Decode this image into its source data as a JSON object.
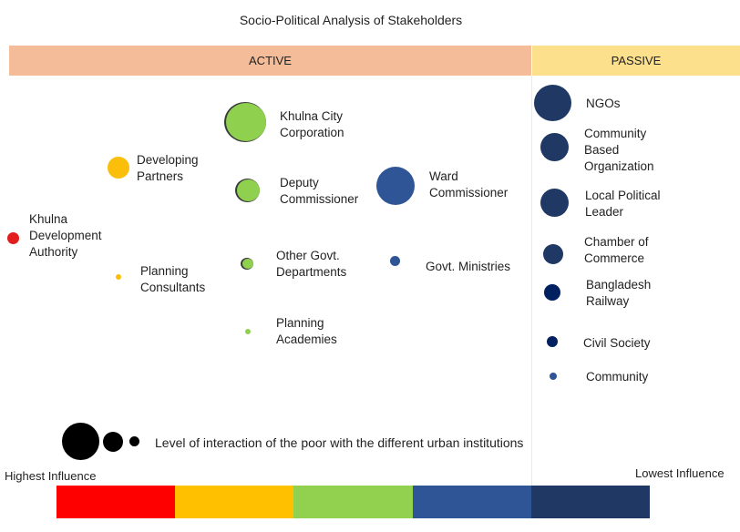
{
  "title": "Socio-Political Analysis of Stakeholders",
  "bands": {
    "active": "ACTIVE",
    "passive": "PASSIVE"
  },
  "stakeholders": {
    "kda": {
      "label": "Khulna\nDevelopment\nAuthority",
      "color": "#e11d1d"
    },
    "partners": {
      "label": "Developing\nPartners",
      "color": "#fbbf0b"
    },
    "consultants": {
      "label": "Planning\nConsultants",
      "color": "#fbbf0b"
    },
    "kcc": {
      "label": "Khulna City\nCorporation",
      "color": "#8fd14f"
    },
    "deputy": {
      "label": "Deputy\nCommissioner",
      "color": "#8fd14f"
    },
    "othergovt": {
      "label": "Other Govt.\nDepartments",
      "color": "#8fd14f"
    },
    "academies": {
      "label": "Planning\nAcademies",
      "color": "#8fd14f"
    },
    "ward": {
      "label": "Ward\nCommissioner",
      "color": "#2f5597"
    },
    "ministries": {
      "label": "Govt. Ministries",
      "color": "#2f5597"
    },
    "ngos": {
      "label": "NGOs",
      "color": "#1f3864"
    },
    "cbo": {
      "label": "Community\nBased\nOrganization",
      "color": "#1f3864"
    },
    "localpol": {
      "label": "Local Political\nLeader",
      "color": "#1f3864"
    },
    "chamber": {
      "label": "Chamber of\nCommerce",
      "color": "#1f3864"
    },
    "railway": {
      "label": "Bangladesh\nRailway",
      "color": "#002060"
    },
    "civil": {
      "label": "Civil Society",
      "color": "#002060"
    },
    "community": {
      "label": "Community",
      "color": "#2f5597"
    }
  },
  "legend": {
    "text": "Level of interaction of the poor with the different urban institutions"
  },
  "influence": {
    "highest": "Highest Influence",
    "lowest": "Lowest Influence",
    "colors": [
      "#ff0000",
      "#ffc000",
      "#92d050",
      "#2f5597",
      "#1f3864"
    ]
  }
}
